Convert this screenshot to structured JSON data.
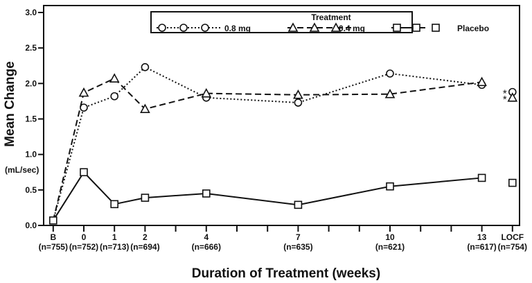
{
  "chart_data": {
    "type": "line",
    "title": "",
    "xlabel": "Duration of Treatment (weeks)",
    "ylabel": "Mean Change",
    "ylabel_units": "(mL/sec)",
    "ylim": [
      0.0,
      3.0
    ],
    "yticks": [
      "0.0",
      "0.5",
      "1.0",
      "1.5",
      "2.0",
      "2.5",
      "3.0"
    ],
    "ytick_values": [
      0.0,
      0.5,
      1.0,
      1.5,
      2.0,
      2.5,
      3.0
    ],
    "x_positions": [
      "B",
      "0",
      "1",
      "2",
      "4",
      "7",
      "10",
      "13",
      "LOCF"
    ],
    "x_numeric": [
      -1,
      0,
      1,
      2,
      4,
      7,
      10,
      13,
      14
    ],
    "x_minor_ticks": [
      3,
      5,
      6,
      8,
      9,
      11,
      12
    ],
    "x_n_labels": [
      "(n=755)",
      "(n=752)",
      "(n=713)",
      "(n=694)",
      "(n=666)",
      "(n=635)",
      "(n=621)",
      "(n=617)",
      "(n=754)"
    ],
    "grid": false,
    "legend": {
      "title": "Treatment",
      "position": "top",
      "entries": [
        "0.8 mg",
        "0.4 mg",
        "Placebo"
      ]
    },
    "series": [
      {
        "name": "0.8 mg",
        "marker": "circle",
        "line_style": "dotted",
        "values": [
          0.07,
          1.66,
          1.82,
          2.23,
          1.8,
          1.73,
          2.14,
          1.98
        ],
        "locf": 1.88,
        "locf_annotation": "*"
      },
      {
        "name": "0.4 mg",
        "marker": "triangle",
        "line_style": "dashed",
        "values": [
          0.07,
          1.87,
          2.07,
          1.64,
          1.86,
          1.84,
          1.85,
          2.02
        ],
        "locf": 1.8,
        "locf_annotation": "*"
      },
      {
        "name": "Placebo",
        "marker": "square",
        "line_style": "solid",
        "values": [
          0.07,
          0.75,
          0.3,
          0.39,
          0.45,
          0.29,
          0.55,
          0.67
        ],
        "locf": 0.6,
        "locf_annotation": ""
      }
    ]
  }
}
